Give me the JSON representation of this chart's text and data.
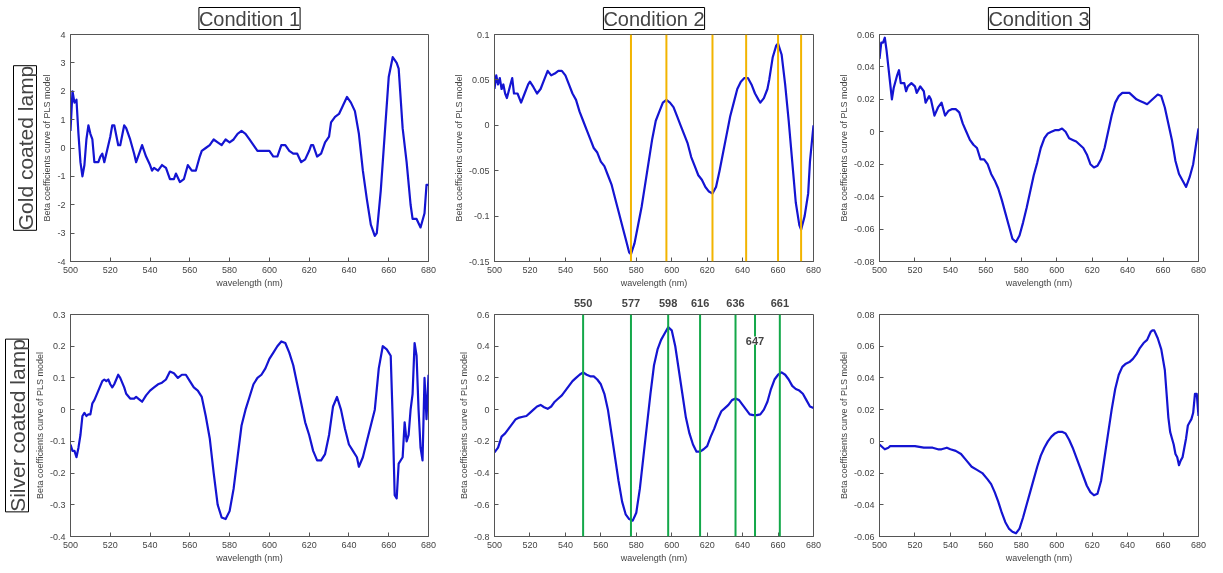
{
  "chart_data": [
    {
      "type": "line",
      "title": "Condition 1",
      "annotations": [
        "Gold coated lamp"
      ],
      "xlabel": "wavelength (nm)",
      "ylabel": "Beta coefficients curve of PLS model",
      "xlim": [
        500,
        680
      ],
      "xticks": [
        500,
        520,
        540,
        560,
        580,
        600,
        620,
        640,
        660,
        680
      ],
      "ylim": [
        -4,
        4
      ],
      "yticks": [
        -4,
        -3,
        -2,
        -1,
        0,
        1,
        2,
        3,
        4
      ],
      "x": [
        500,
        501,
        502,
        503,
        504,
        505,
        506,
        507,
        508,
        509,
        510,
        511,
        512,
        514,
        515,
        516,
        517,
        518,
        520,
        521,
        522,
        524,
        525,
        527,
        528,
        530,
        532,
        533,
        535,
        536,
        538,
        540,
        541,
        542,
        544,
        546,
        548,
        550,
        552,
        553,
        555,
        557,
        559,
        561,
        563,
        565,
        566,
        568,
        570,
        572,
        574,
        576,
        578,
        580,
        582,
        584,
        586,
        588,
        590,
        592,
        594,
        596,
        598,
        600,
        602,
        604,
        606,
        608,
        610,
        612,
        614,
        616,
        618,
        620,
        621,
        622,
        624,
        626,
        628,
        630,
        631,
        633,
        635,
        637,
        639,
        641,
        643,
        645,
        647,
        649,
        651,
        653,
        654,
        656,
        658,
        660,
        662,
        664,
        665,
        667,
        669,
        671,
        672,
        674,
        676,
        678,
        679,
        680
      ],
      "series": [
        {
          "color": "#1414d2",
          "values": [
            0.6,
            2.0,
            1.6,
            1.7,
            0.5,
            -0.5,
            -1.0,
            -0.6,
            0.3,
            0.8,
            0.5,
            0.3,
            -0.5,
            -0.5,
            -0.3,
            -0.2,
            -0.5,
            -0.2,
            0.4,
            0.8,
            0.8,
            0.1,
            0.1,
            0.8,
            0.7,
            0.3,
            -0.2,
            -0.5,
            -0.1,
            0.1,
            -0.3,
            -0.6,
            -0.8,
            -0.7,
            -0.8,
            -0.6,
            -0.7,
            -1.1,
            -1.1,
            -0.9,
            -1.2,
            -1.1,
            -0.6,
            -0.8,
            -0.8,
            -0.3,
            -0.1,
            0,
            0.1,
            0.3,
            0.2,
            0.1,
            0.3,
            0.2,
            0.3,
            0.5,
            0.6,
            0.5,
            0.3,
            0.1,
            -0.1,
            -0.1,
            -0.1,
            -0.1,
            -0.3,
            -0.3,
            0.1,
            0.1,
            -0.1,
            -0.2,
            -0.2,
            -0.5,
            -0.4,
            -0.1,
            0.1,
            0.1,
            -0.3,
            -0.2,
            0.2,
            0.4,
            0.9,
            1.1,
            1.2,
            1.5,
            1.8,
            1.6,
            1.3,
            0.5,
            -0.8,
            -1.8,
            -2.7,
            -3.1,
            -3.0,
            -1.5,
            0.5,
            2.5,
            3.2,
            3.0,
            2.8,
            0.7,
            -0.5,
            -2.0,
            -2.5,
            -2.5,
            -2.8,
            -2.3,
            -1.3,
            -1.3
          ]
        }
      ]
    },
    {
      "type": "line",
      "title": "Condition 2",
      "xlabel": "wavelength (nm)",
      "ylabel": "Beta coefficients curve of PLS model",
      "xlim": [
        500,
        680
      ],
      "xticks": [
        500,
        520,
        540,
        560,
        580,
        600,
        620,
        640,
        660,
        680
      ],
      "ylim": [
        -0.15,
        0.1
      ],
      "yticks": [
        -0.15,
        -0.1,
        -0.05,
        0,
        0.05,
        0.1
      ],
      "ref_lines": [
        {
          "axis": "x",
          "value": 577,
          "color": "#f2b400"
        },
        {
          "axis": "x",
          "value": 597,
          "color": "#f2b400"
        },
        {
          "axis": "x",
          "value": 623,
          "color": "#f2b400"
        },
        {
          "axis": "x",
          "value": 642,
          "color": "#f2b400"
        },
        {
          "axis": "x",
          "value": 660,
          "color": "#f2b400"
        },
        {
          "axis": "x",
          "value": 673,
          "color": "#f2b400"
        }
      ],
      "x": [
        500,
        501,
        502,
        503,
        504,
        505,
        506,
        507,
        509,
        510,
        511,
        513,
        515,
        517,
        519,
        520,
        522,
        524,
        526,
        528,
        530,
        532,
        534,
        536,
        538,
        540,
        542,
        544,
        546,
        548,
        550,
        552,
        554,
        556,
        558,
        560,
        562,
        564,
        566,
        568,
        570,
        572,
        574,
        576,
        577,
        579,
        581,
        583,
        585,
        587,
        589,
        591,
        593,
        595,
        597,
        599,
        601,
        603,
        605,
        607,
        609,
        611,
        613,
        615,
        617,
        619,
        621,
        623,
        625,
        627,
        629,
        631,
        633,
        635,
        637,
        639,
        641,
        643,
        645,
        647,
        649,
        650,
        652,
        654,
        655,
        657,
        659,
        660,
        662,
        664,
        666,
        668,
        670,
        672,
        673,
        675,
        677,
        678,
        679,
        680
      ],
      "series": [
        {
          "color": "#1414d2",
          "values": [
            0.04,
            0.055,
            0.045,
            0.052,
            0.04,
            0.045,
            0.035,
            0.03,
            0.045,
            0.052,
            0.035,
            0.035,
            0.025,
            0.035,
            0.045,
            0.048,
            0.042,
            0.035,
            0.04,
            0.05,
            0.06,
            0.055,
            0.057,
            0.06,
            0.06,
            0.055,
            0.045,
            0.035,
            0.028,
            0.015,
            0.005,
            -0.005,
            -0.015,
            -0.025,
            -0.03,
            -0.04,
            -0.045,
            -0.055,
            -0.065,
            -0.08,
            -0.095,
            -0.11,
            -0.125,
            -0.14,
            -0.142,
            -0.13,
            -0.11,
            -0.09,
            -0.065,
            -0.04,
            -0.015,
            0.005,
            0.015,
            0.025,
            0.028,
            0.025,
            0.02,
            0.01,
            0.0,
            -0.01,
            -0.02,
            -0.035,
            -0.045,
            -0.055,
            -0.06,
            -0.068,
            -0.073,
            -0.075,
            -0.068,
            -0.05,
            -0.03,
            -0.01,
            0.01,
            0.025,
            0.04,
            0.048,
            0.052,
            0.052,
            0.045,
            0.035,
            0.028,
            0.025,
            0.03,
            0.04,
            0.05,
            0.075,
            0.088,
            0.09,
            0.078,
            0.045,
            0.005,
            -0.04,
            -0.085,
            -0.11,
            -0.115,
            -0.1,
            -0.075,
            -0.04,
            -0.02,
            0.0
          ]
        }
      ]
    },
    {
      "type": "line",
      "title": "Condition 3",
      "xlabel": "wavelength (nm)",
      "ylabel": "Beta coefficients curve of PLS model",
      "xlim": [
        500,
        680
      ],
      "xticks": [
        500,
        520,
        540,
        560,
        580,
        600,
        620,
        640,
        660,
        680
      ],
      "ylim": [
        -0.08,
        0.06
      ],
      "yticks": [
        -0.08,
        -0.06,
        -0.04,
        -0.02,
        0,
        0.02,
        0.04,
        0.06
      ],
      "x": [
        500,
        501,
        502,
        503,
        504,
        505,
        506,
        507,
        508,
        510,
        511,
        512,
        514,
        515,
        516,
        518,
        520,
        521,
        523,
        525,
        526,
        528,
        529,
        531,
        533,
        535,
        537,
        539,
        541,
        543,
        545,
        547,
        549,
        551,
        553,
        555,
        557,
        559,
        561,
        563,
        565,
        567,
        569,
        571,
        573,
        575,
        577,
        579,
        581,
        583,
        585,
        587,
        589,
        591,
        593,
        595,
        597,
        599,
        601,
        603,
        605,
        607,
        609,
        611,
        613,
        615,
        617,
        619,
        621,
        623,
        625,
        627,
        629,
        631,
        633,
        635,
        637,
        641,
        643,
        645,
        647,
        649,
        651,
        653,
        655,
        657,
        659,
        661,
        663,
        665,
        667,
        669,
        671,
        673,
        675,
        677,
        679,
        680
      ],
      "series": [
        {
          "color": "#1414d2",
          "values": [
            0.045,
            0.055,
            0.055,
            0.058,
            0.05,
            0.04,
            0.03,
            0.02,
            0.027,
            0.035,
            0.038,
            0.03,
            0.03,
            0.025,
            0.028,
            0.03,
            0.028,
            0.024,
            0.028,
            0.025,
            0.018,
            0.022,
            0.02,
            0.01,
            0.015,
            0.018,
            0.01,
            0.013,
            0.014,
            0.014,
            0.012,
            0.005,
            0.0,
            -0.005,
            -0.008,
            -0.01,
            -0.017,
            -0.017,
            -0.02,
            -0.026,
            -0.03,
            -0.035,
            -0.042,
            -0.05,
            -0.058,
            -0.066,
            -0.068,
            -0.064,
            -0.056,
            -0.047,
            -0.037,
            -0.027,
            -0.019,
            -0.01,
            -0.004,
            -0.001,
            0.0,
            0.001,
            0.001,
            0.002,
            0.0,
            -0.004,
            -0.005,
            -0.006,
            -0.008,
            -0.01,
            -0.014,
            -0.02,
            -0.022,
            -0.021,
            -0.017,
            -0.01,
            0.0,
            0.01,
            0.018,
            0.022,
            0.024,
            0.024,
            0.022,
            0.02,
            0.019,
            0.018,
            0.017,
            0.019,
            0.021,
            0.023,
            0.022,
            0.015,
            0.005,
            -0.005,
            -0.018,
            -0.026,
            -0.03,
            -0.034,
            -0.028,
            -0.02,
            -0.005,
            0.002
          ]
        }
      ]
    },
    {
      "type": "line",
      "annotations": [
        "Silver coated lamp"
      ],
      "xlabel": "wavelength (nm)",
      "ylabel": "Beta coefficients curve of PLS model",
      "xlim": [
        500,
        680
      ],
      "xticks": [
        500,
        520,
        540,
        560,
        580,
        600,
        620,
        640,
        660,
        680
      ],
      "ylim": [
        -0.4,
        0.3
      ],
      "yticks": [
        -0.4,
        -0.3,
        -0.2,
        -0.1,
        0,
        0.1,
        0.2,
        0.3
      ],
      "x": [
        500,
        501,
        502,
        503,
        504,
        505,
        506,
        507,
        508,
        509,
        510,
        511,
        512,
        514,
        516,
        517,
        518,
        519,
        520,
        521,
        522,
        524,
        525,
        527,
        528,
        530,
        532,
        533,
        535,
        536,
        538,
        540,
        542,
        544,
        546,
        548,
        550,
        552,
        554,
        556,
        558,
        560,
        562,
        564,
        566,
        568,
        570,
        572,
        574,
        576,
        578,
        580,
        582,
        584,
        586,
        588,
        590,
        592,
        594,
        596,
        598,
        600,
        602,
        604,
        606,
        608,
        610,
        612,
        614,
        616,
        618,
        620,
        622,
        624,
        626,
        628,
        630,
        632,
        634,
        636,
        638,
        640,
        642,
        644,
        645,
        647,
        649,
        651,
        653,
        655,
        657,
        659,
        661,
        662,
        663,
        664,
        665,
        667,
        668,
        669,
        670,
        671,
        672,
        673,
        674,
        675,
        676,
        677,
        678,
        679,
        680
      ],
      "series": [
        {
          "color": "#1414d2",
          "values": [
            -0.11,
            -0.13,
            -0.13,
            -0.15,
            -0.12,
            -0.08,
            -0.02,
            -0.01,
            -0.02,
            -0.015,
            -0.015,
            0.02,
            0.03,
            0.06,
            0.09,
            0.095,
            0.09,
            0.095,
            0.08,
            0.07,
            0.08,
            0.11,
            0.1,
            0.07,
            0.05,
            0.035,
            0.035,
            0.04,
            0.03,
            0.025,
            0.045,
            0.06,
            0.07,
            0.08,
            0.085,
            0.095,
            0.12,
            0.115,
            0.1,
            0.11,
            0.11,
            0.09,
            0.07,
            0.06,
            0.04,
            -0.02,
            -0.09,
            -0.2,
            -0.3,
            -0.34,
            -0.345,
            -0.32,
            -0.25,
            -0.15,
            -0.05,
            0.0,
            0.04,
            0.08,
            0.1,
            0.11,
            0.13,
            0.16,
            0.18,
            0.2,
            0.215,
            0.21,
            0.18,
            0.14,
            0.08,
            0.02,
            -0.04,
            -0.08,
            -0.13,
            -0.16,
            -0.16,
            -0.14,
            -0.08,
            0.01,
            0.04,
            0.0,
            -0.06,
            -0.11,
            -0.13,
            -0.15,
            -0.18,
            -0.15,
            -0.1,
            -0.05,
            0.0,
            0.13,
            0.2,
            0.19,
            0.17,
            -0.03,
            -0.27,
            -0.28,
            -0.17,
            -0.15,
            -0.04,
            -0.1,
            -0.08,
            0.0,
            0.05,
            0.21,
            0.17,
            0.0,
            -0.12,
            -0.16,
            0.1,
            -0.03,
            0.11
          ]
        }
      ]
    },
    {
      "type": "line",
      "xlabel": "wavelength (nm)",
      "ylabel": "Beta coefficients curve of PLS model",
      "xlim": [
        500,
        680
      ],
      "xticks": [
        500,
        520,
        540,
        560,
        580,
        600,
        620,
        640,
        660,
        680
      ],
      "ylim": [
        -0.8,
        0.6
      ],
      "yticks": [
        -0.8,
        -0.6,
        -0.4,
        -0.2,
        0,
        0.2,
        0.4,
        0.6
      ],
      "ref_lines": [
        {
          "axis": "x",
          "value": 550,
          "label": "550",
          "color": "#14a84a"
        },
        {
          "axis": "x",
          "value": 577,
          "label": "577",
          "color": "#14a84a"
        },
        {
          "axis": "x",
          "value": 598,
          "label": "598",
          "color": "#14a84a"
        },
        {
          "axis": "x",
          "value": 616,
          "label": "616",
          "color": "#14a84a"
        },
        {
          "axis": "x",
          "value": 636,
          "label": "636",
          "color": "#14a84a"
        },
        {
          "axis": "x",
          "value": 647,
          "label": "647",
          "color": "#14a84a"
        },
        {
          "axis": "x",
          "value": 661,
          "label": "661",
          "color": "#14a84a"
        }
      ],
      "x": [
        500,
        502,
        504,
        506,
        508,
        510,
        512,
        514,
        516,
        518,
        520,
        522,
        524,
        526,
        528,
        530,
        532,
        534,
        536,
        538,
        540,
        542,
        544,
        546,
        548,
        550,
        552,
        554,
        556,
        558,
        560,
        562,
        564,
        566,
        568,
        570,
        572,
        574,
        576,
        578,
        580,
        582,
        584,
        586,
        588,
        590,
        592,
        594,
        596,
        598,
        600,
        602,
        604,
        606,
        608,
        610,
        612,
        614,
        616,
        618,
        620,
        622,
        624,
        626,
        628,
        630,
        632,
        634,
        636,
        638,
        640,
        642,
        644,
        646,
        648,
        650,
        652,
        654,
        656,
        658,
        660,
        662,
        664,
        666,
        668,
        670,
        672,
        674,
        676,
        678,
        680
      ],
      "series": [
        {
          "color": "#1414d2",
          "values": [
            -0.27,
            -0.24,
            -0.17,
            -0.15,
            -0.12,
            -0.09,
            -0.06,
            -0.05,
            -0.045,
            -0.04,
            -0.02,
            0.0,
            0.02,
            0.03,
            0.015,
            0.005,
            0.02,
            0.05,
            0.07,
            0.09,
            0.12,
            0.15,
            0.18,
            0.2,
            0.22,
            0.235,
            0.22,
            0.21,
            0.21,
            0.19,
            0.16,
            0.1,
            0.0,
            -0.15,
            -0.3,
            -0.45,
            -0.58,
            -0.66,
            -0.69,
            -0.7,
            -0.65,
            -0.5,
            -0.3,
            -0.1,
            0.1,
            0.28,
            0.38,
            0.44,
            0.48,
            0.52,
            0.5,
            0.4,
            0.25,
            0.1,
            -0.05,
            -0.15,
            -0.22,
            -0.265,
            -0.265,
            -0.25,
            -0.23,
            -0.17,
            -0.12,
            -0.06,
            -0.01,
            0.01,
            0.03,
            0.06,
            0.07,
            0.06,
            0.03,
            0.0,
            -0.03,
            -0.035,
            -0.035,
            -0.03,
            0.0,
            0.05,
            0.13,
            0.19,
            0.22,
            0.235,
            0.22,
            0.19,
            0.15,
            0.13,
            0.12,
            0.1,
            0.06,
            0.02,
            0.01
          ]
        }
      ]
    },
    {
      "type": "line",
      "xlabel": "wavelength (nm)",
      "ylabel": "Beta coefficients curve of PLS model",
      "xlim": [
        500,
        680
      ],
      "xticks": [
        500,
        520,
        540,
        560,
        580,
        600,
        620,
        640,
        660,
        680
      ],
      "ylim": [
        -0.06,
        0.08
      ],
      "yticks": [
        -0.06,
        -0.04,
        -0.02,
        0,
        0.02,
        0.04,
        0.06,
        0.08
      ],
      "x": [
        500,
        502,
        503,
        505,
        506,
        510,
        515,
        520,
        525,
        530,
        533,
        535,
        538,
        540,
        543,
        546,
        549,
        552,
        555,
        558,
        561,
        563,
        565,
        567,
        569,
        571,
        573,
        575,
        577,
        579,
        581,
        583,
        585,
        587,
        589,
        591,
        593,
        595,
        597,
        599,
        601,
        603,
        605,
        607,
        609,
        611,
        613,
        615,
        617,
        619,
        621,
        623,
        625,
        627,
        629,
        631,
        633,
        635,
        637,
        639,
        641,
        643,
        645,
        647,
        649,
        651,
        653,
        654,
        655,
        657,
        659,
        661,
        662,
        663,
        664,
        665,
        666,
        667,
        668,
        669,
        670,
        671,
        672,
        673,
        674,
        675,
        676,
        677,
        678,
        679,
        680
      ],
      "series": [
        {
          "color": "#1414d2",
          "values": [
            -0.002,
            -0.004,
            -0.005,
            -0.004,
            -0.003,
            -0.003,
            -0.003,
            -0.003,
            -0.004,
            -0.004,
            -0.005,
            -0.005,
            -0.004,
            -0.005,
            -0.006,
            -0.008,
            -0.012,
            -0.016,
            -0.018,
            -0.02,
            -0.024,
            -0.027,
            -0.032,
            -0.038,
            -0.045,
            -0.051,
            -0.055,
            -0.057,
            -0.058,
            -0.055,
            -0.048,
            -0.04,
            -0.032,
            -0.024,
            -0.016,
            -0.009,
            -0.004,
            0.0,
            0.003,
            0.005,
            0.006,
            0.006,
            0.005,
            0.001,
            -0.004,
            -0.01,
            -0.016,
            -0.022,
            -0.028,
            -0.032,
            -0.034,
            -0.033,
            -0.025,
            -0.01,
            0.005,
            0.02,
            0.033,
            0.042,
            0.047,
            0.049,
            0.05,
            0.052,
            0.055,
            0.059,
            0.062,
            0.064,
            0.069,
            0.07,
            0.07,
            0.065,
            0.058,
            0.045,
            0.03,
            0.015,
            0.006,
            0.002,
            -0.002,
            -0.008,
            -0.01,
            -0.015,
            -0.012,
            -0.01,
            -0.004,
            0.002,
            0.01,
            0.012,
            0.014,
            0.018,
            0.03,
            0.03,
            0.016
          ]
        }
      ]
    }
  ]
}
